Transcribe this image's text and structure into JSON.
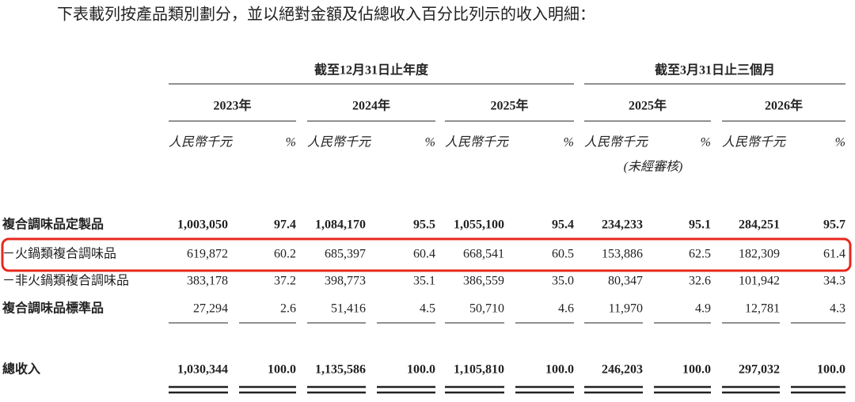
{
  "intro": "下表載列按產品類別劃分，並以絕對金額及佔總收入百分比列示的收入明細：",
  "header": {
    "groups": [
      "截至12月31日止年度",
      "截至3月31日止三個月"
    ],
    "years": [
      "2023年",
      "2024年",
      "2025年",
      "2025年",
      "2026年"
    ],
    "unit_amount": "人民幣千元",
    "unit_percent": "%",
    "unaudited": "(未經審核)"
  },
  "table": {
    "rows": [
      {
        "label": "複合調味品定製品",
        "values": [
          "1,003,050",
          "97.4",
          "1,084,170",
          "95.5",
          "1,055,100",
          "95.4",
          "234,233",
          "95.1",
          "284,251",
          "95.7"
        ]
      },
      {
        "label": "－火鍋類複合調味品",
        "values": [
          "619,872",
          "60.2",
          "685,397",
          "60.4",
          "668,541",
          "60.5",
          "153,886",
          "62.5",
          "182,309",
          "61.4"
        ]
      },
      {
        "label": "－非火鍋類複合調味品",
        "values": [
          "383,178",
          "37.2",
          "398,773",
          "35.1",
          "386,559",
          "35.0",
          "80,347",
          "32.6",
          "101,942",
          "34.3"
        ]
      },
      {
        "label": "複合調味品標準品",
        "values": [
          "27,294",
          "2.6",
          "51,416",
          "4.5",
          "50,710",
          "4.6",
          "11,970",
          "4.9",
          "12,781",
          "4.3"
        ]
      },
      {
        "label": "總收入",
        "values": [
          "1,030,344",
          "100.0",
          "1,135,586",
          "100.0",
          "1,105,810",
          "100.0",
          "246,203",
          "100.0",
          "297,032",
          "100.0"
        ]
      }
    ]
  }
}
